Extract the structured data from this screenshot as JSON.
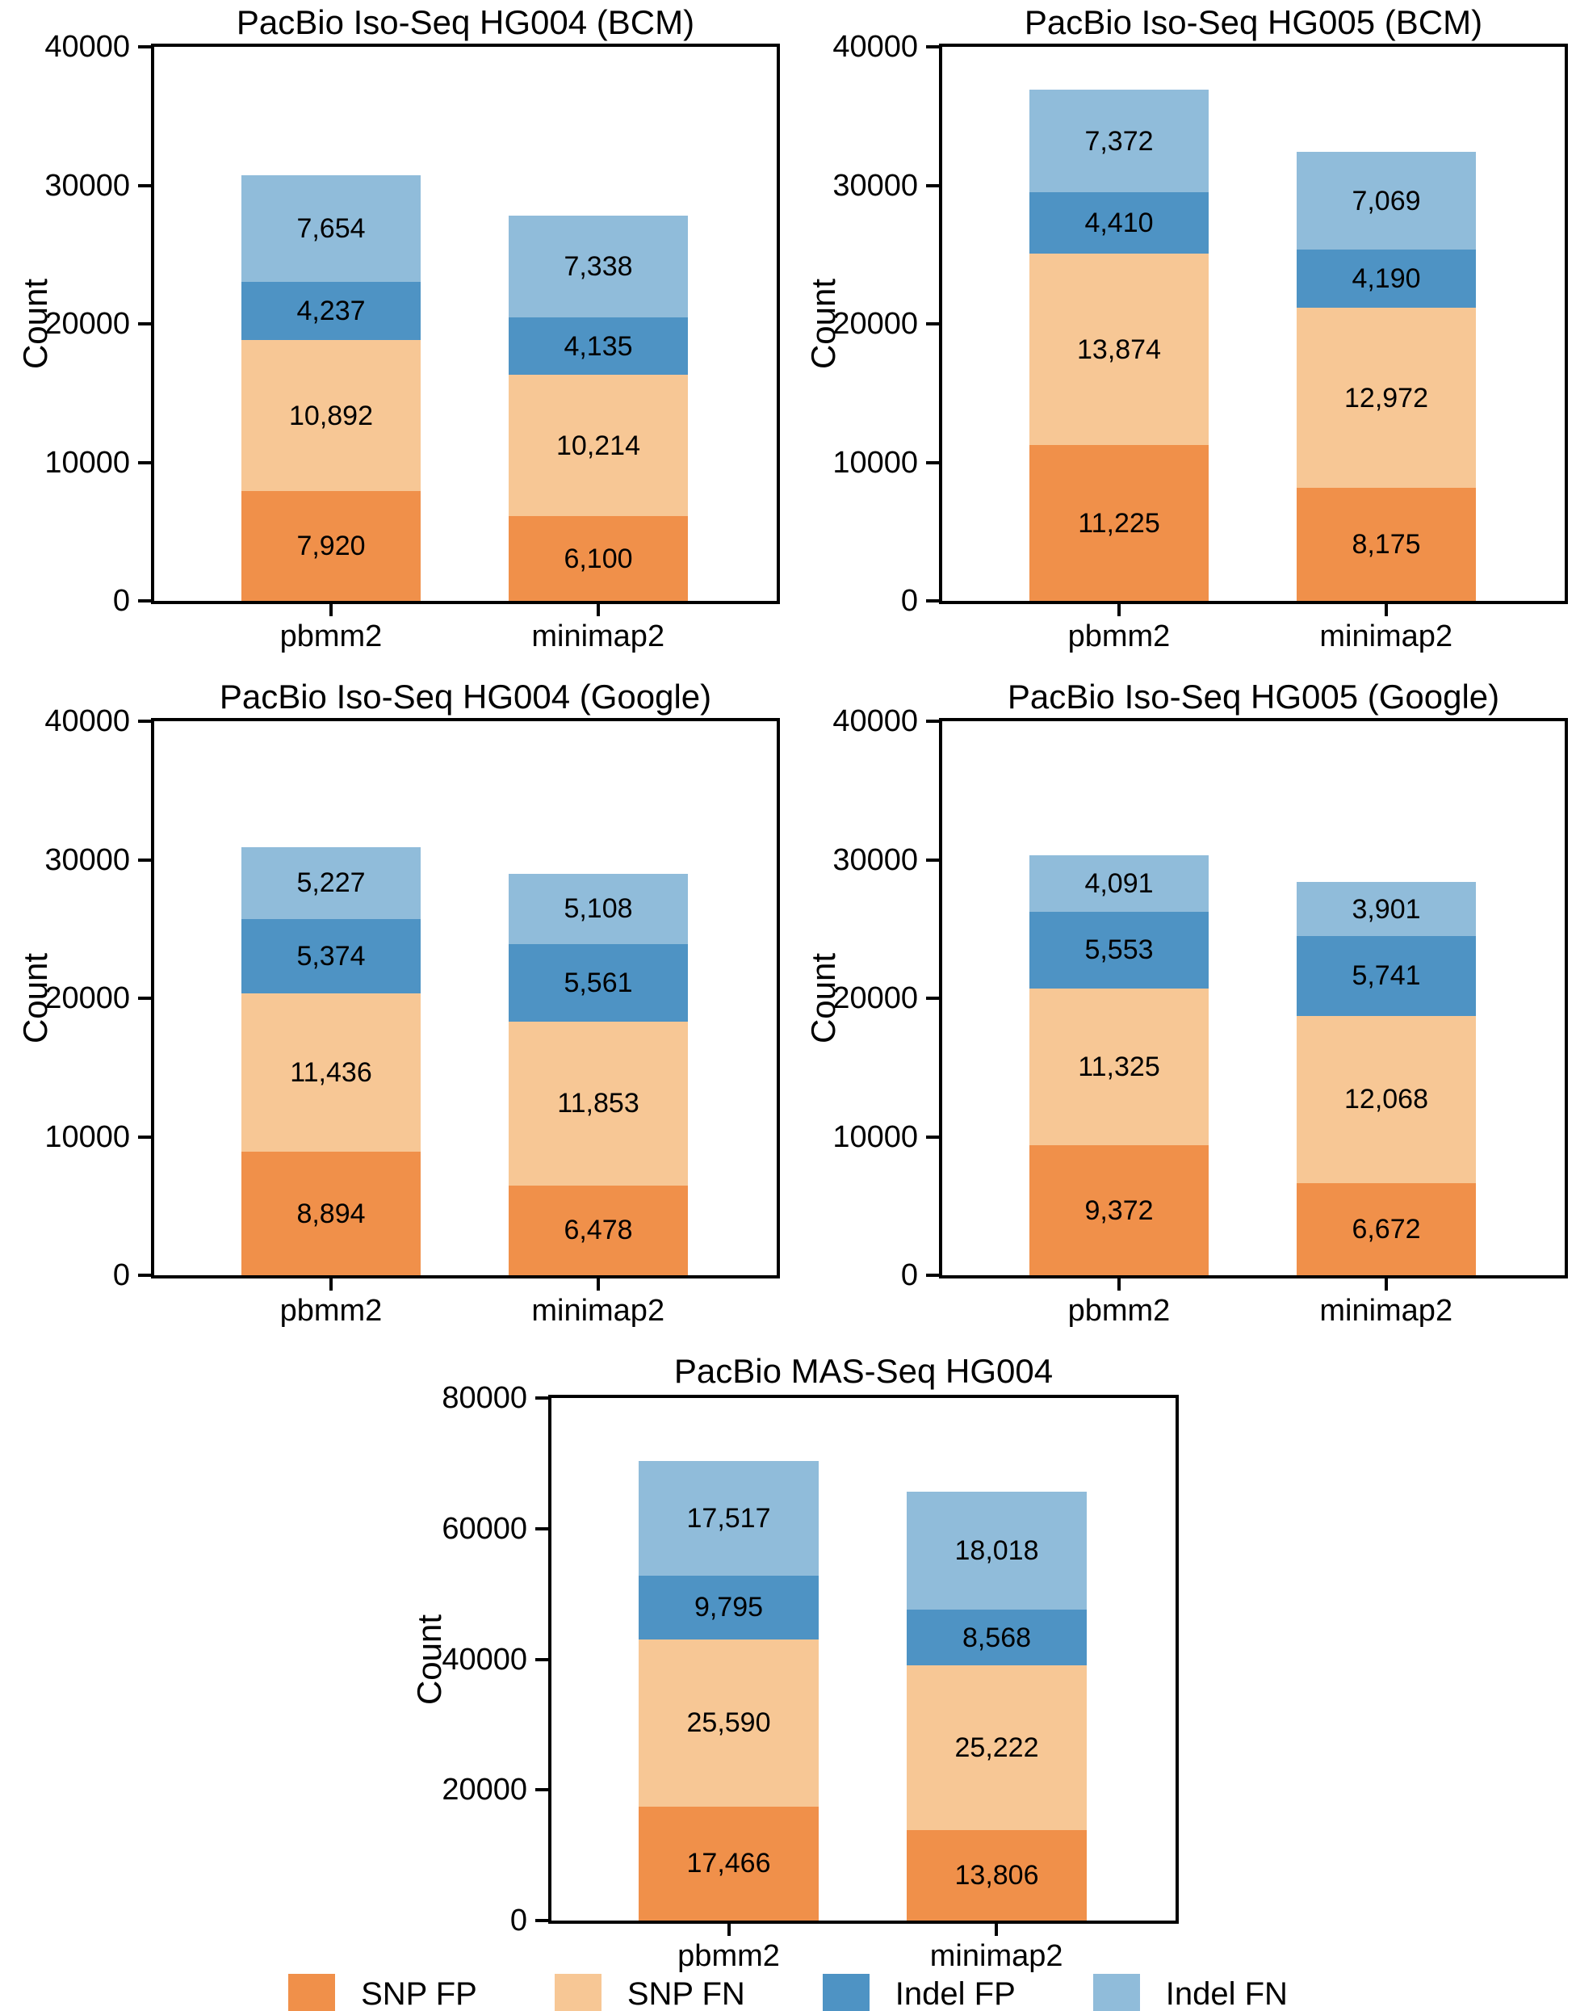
{
  "figure": {
    "background_color": "#ffffff",
    "axis_color": "#000000",
    "text_color": "#000000"
  },
  "palette": {
    "snp_fp": "#F0904A",
    "snp_fn": "#F7C795",
    "indel_fp": "#4E93C4",
    "indel_fn": "#90BCDA"
  },
  "legend": {
    "entries": [
      {
        "label": "SNP FP",
        "color_key": "snp_fp",
        "color": "#F0904A"
      },
      {
        "label": "SNP FN",
        "color_key": "snp_fn",
        "color": "#F7C795"
      },
      {
        "label": "Indel FP",
        "color_key": "indel_fp",
        "color": "#4E93C4"
      },
      {
        "label": "Indel FN",
        "color_key": "indel_fn",
        "color": "#90BCDA"
      }
    ]
  },
  "chart_data": [
    {
      "type": "bar",
      "stacked": true,
      "title": "PacBio Iso-Seq HG004 (BCM)",
      "xlabel": "",
      "ylabel": "Count",
      "ylim": [
        0,
        40000
      ],
      "yticks": [
        0,
        10000,
        20000,
        30000,
        40000
      ],
      "categories": [
        "pbmm2",
        "minimap2"
      ],
      "grid": false,
      "legend_position": "none",
      "series": [
        {
          "name": "SNP FP",
          "color_key": "snp_fp",
          "values": [
            7920,
            6100
          ]
        },
        {
          "name": "SNP FN",
          "color_key": "snp_fn",
          "values": [
            10892,
            10214
          ]
        },
        {
          "name": "Indel FP",
          "color_key": "indel_fp",
          "values": [
            4237,
            4135
          ]
        },
        {
          "name": "Indel FN",
          "color_key": "indel_fn",
          "values": [
            7654,
            7338
          ]
        }
      ]
    },
    {
      "type": "bar",
      "stacked": true,
      "title": "PacBio Iso-Seq HG005 (BCM)",
      "xlabel": "",
      "ylabel": "Count",
      "ylim": [
        0,
        40000
      ],
      "yticks": [
        0,
        10000,
        20000,
        30000,
        40000
      ],
      "categories": [
        "pbmm2",
        "minimap2"
      ],
      "grid": false,
      "legend_position": "none",
      "series": [
        {
          "name": "SNP FP",
          "color_key": "snp_fp",
          "values": [
            11225,
            8175
          ]
        },
        {
          "name": "SNP FN",
          "color_key": "snp_fn",
          "values": [
            13874,
            12972
          ]
        },
        {
          "name": "Indel FP",
          "color_key": "indel_fp",
          "values": [
            4410,
            4190
          ]
        },
        {
          "name": "Indel FN",
          "color_key": "indel_fn",
          "values": [
            7372,
            7069
          ]
        }
      ]
    },
    {
      "type": "bar",
      "stacked": true,
      "title": "PacBio Iso-Seq HG004 (Google)",
      "xlabel": "",
      "ylabel": "Count",
      "ylim": [
        0,
        40000
      ],
      "yticks": [
        0,
        10000,
        20000,
        30000,
        40000
      ],
      "categories": [
        "pbmm2",
        "minimap2"
      ],
      "grid": false,
      "legend_position": "none",
      "series": [
        {
          "name": "SNP FP",
          "color_key": "snp_fp",
          "values": [
            8894,
            6478
          ]
        },
        {
          "name": "SNP FN",
          "color_key": "snp_fn",
          "values": [
            11436,
            11853
          ]
        },
        {
          "name": "Indel FP",
          "color_key": "indel_fp",
          "values": [
            5374,
            5561
          ]
        },
        {
          "name": "Indel FN",
          "color_key": "indel_fn",
          "values": [
            5227,
            5108
          ]
        }
      ]
    },
    {
      "type": "bar",
      "stacked": true,
      "title": "PacBio Iso-Seq HG005 (Google)",
      "xlabel": "",
      "ylabel": "Count",
      "ylim": [
        0,
        40000
      ],
      "yticks": [
        0,
        10000,
        20000,
        30000,
        40000
      ],
      "categories": [
        "pbmm2",
        "minimap2"
      ],
      "grid": false,
      "legend_position": "none",
      "series": [
        {
          "name": "SNP FP",
          "color_key": "snp_fp",
          "values": [
            9372,
            6672
          ]
        },
        {
          "name": "SNP FN",
          "color_key": "snp_fn",
          "values": [
            11325,
            12068
          ]
        },
        {
          "name": "Indel FP",
          "color_key": "indel_fp",
          "values": [
            5553,
            5741
          ]
        },
        {
          "name": "Indel FN",
          "color_key": "indel_fn",
          "values": [
            4091,
            3901
          ]
        }
      ]
    },
    {
      "type": "bar",
      "stacked": true,
      "title": "PacBio MAS-Seq HG004",
      "xlabel": "",
      "ylabel": "Count",
      "ylim": [
        0,
        80000
      ],
      "yticks": [
        0,
        20000,
        40000,
        60000,
        80000
      ],
      "categories": [
        "pbmm2",
        "minimap2"
      ],
      "grid": false,
      "legend_position": "none",
      "series": [
        {
          "name": "SNP FP",
          "color_key": "snp_fp",
          "values": [
            17466,
            13806
          ]
        },
        {
          "name": "SNP FN",
          "color_key": "snp_fn",
          "values": [
            25590,
            25222
          ]
        },
        {
          "name": "Indel FP",
          "color_key": "indel_fp",
          "values": [
            9795,
            8568
          ]
        },
        {
          "name": "Indel FN",
          "color_key": "indel_fn",
          "values": [
            17517,
            18018
          ]
        }
      ]
    }
  ]
}
